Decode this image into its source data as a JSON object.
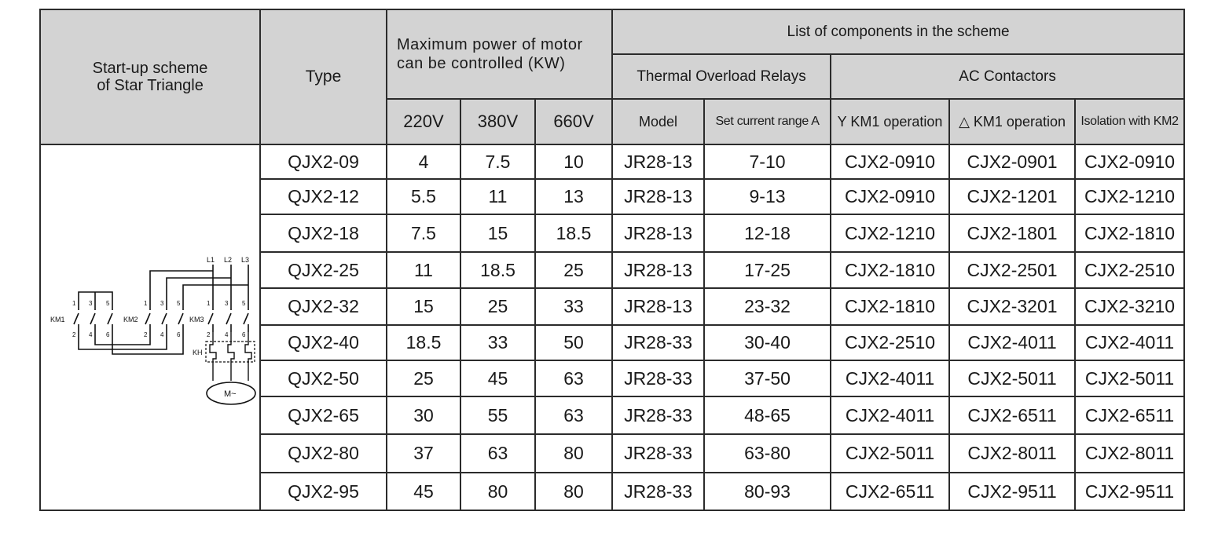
{
  "header": {
    "scheme_line1": "Start-up scheme",
    "scheme_line2": "of Star Triangle",
    "type": "Type",
    "power_line1": "Maximum power of motor",
    "power_line2": "can be controlled (KW)",
    "list_title": "List of components in the scheme",
    "relays_group": "Thermal Overload Relays",
    "contactors_group": "AC Contactors",
    "v220": "220V",
    "v380": "380V",
    "v660": "660V",
    "model": "Model",
    "set_range": "Set current range A",
    "y_km1": "Y KM1 operation",
    "delta_km1": "△ KM1 operation",
    "isolation_km2": "Isolation with KM2"
  },
  "diagram": {
    "labels": {
      "l1": "L1",
      "l2": "L2",
      "l3": "L3",
      "km1": "KM1",
      "km2": "KM2",
      "km3": "KM3",
      "kh": "KH",
      "motor": "M~",
      "t1": "1",
      "t3": "3",
      "t5": "5",
      "t2": "2",
      "t4": "4",
      "t6": "6"
    }
  },
  "rows": [
    [
      "QJX2-09",
      "4",
      "7.5",
      "10",
      "JR28-13",
      "7-10",
      "CJX2-0910",
      "CJX2-0901",
      "CJX2-0910"
    ],
    [
      "QJX2-12",
      "5.5",
      "11",
      "13",
      "JR28-13",
      "9-13",
      "CJX2-0910",
      "CJX2-1201",
      "CJX2-1210"
    ],
    [
      "QJX2-18",
      "7.5",
      "15",
      "18.5",
      "JR28-13",
      "12-18",
      "CJX2-1210",
      "CJX2-1801",
      "CJX2-1810"
    ],
    [
      "QJX2-25",
      "11",
      "18.5",
      "25",
      "JR28-13",
      "17-25",
      "CJX2-1810",
      "CJX2-2501",
      "CJX2-2510"
    ],
    [
      "QJX2-32",
      "15",
      "25",
      "33",
      "JR28-13",
      "23-32",
      "CJX2-1810",
      "CJX2-3201",
      "CJX2-3210"
    ],
    [
      "QJX2-40",
      "18.5",
      "33",
      "50",
      "JR28-33",
      "30-40",
      "CJX2-2510",
      "CJX2-4011",
      "CJX2-4011"
    ],
    [
      "QJX2-50",
      "25",
      "45",
      "63",
      "JR28-33",
      "37-50",
      "CJX2-4011",
      "CJX2-5011",
      "CJX2-5011"
    ],
    [
      "QJX2-65",
      "30",
      "55",
      "63",
      "JR28-33",
      "48-65",
      "CJX2-4011",
      "CJX2-6511",
      "CJX2-6511"
    ],
    [
      "QJX2-80",
      "37",
      "63",
      "80",
      "JR28-33",
      "63-80",
      "CJX2-5011",
      "CJX2-8011",
      "CJX2-8011"
    ],
    [
      "QJX2-95",
      "45",
      "80",
      "80",
      "JR28-33",
      "80-93",
      "CJX2-6511",
      "CJX2-9511",
      "CJX2-9511"
    ]
  ]
}
